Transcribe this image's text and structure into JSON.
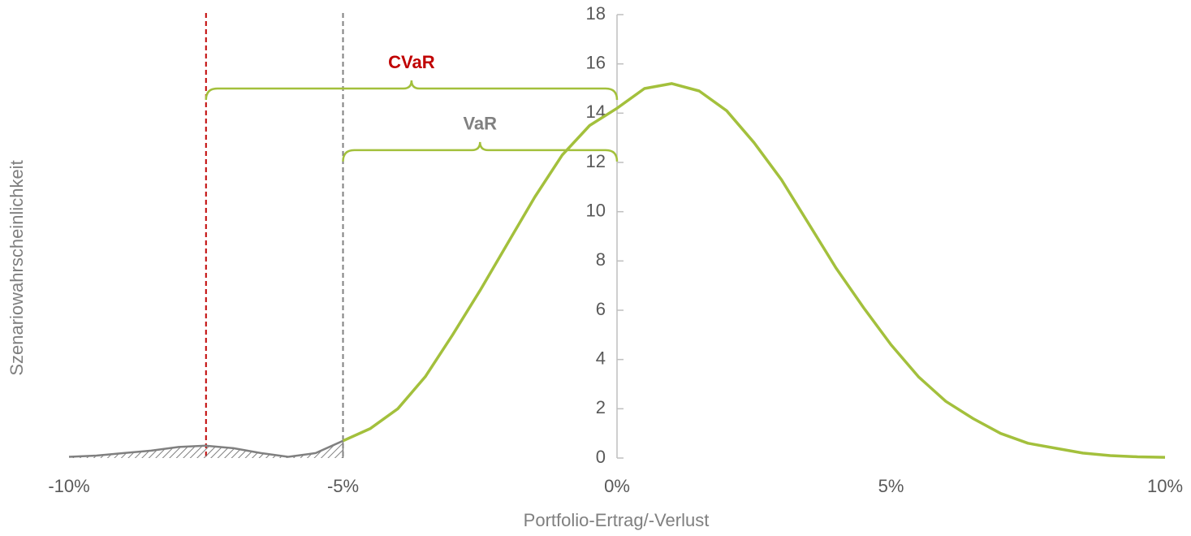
{
  "chart_data": {
    "type": "line",
    "xlabel": "Portfolio-Ertrag/-Verlust",
    "ylabel": "Szenariowahrscheinlichkeit",
    "xlim": [
      -10,
      10
    ],
    "xticks": [
      {
        "value": -10,
        "label": "-10%"
      },
      {
        "value": -5,
        "label": "-5%"
      },
      {
        "value": 0,
        "label": "0%"
      },
      {
        "value": 5,
        "label": "5%"
      },
      {
        "value": 10,
        "label": "10%"
      }
    ],
    "ylim": [
      0,
      18
    ],
    "yticks": [
      0,
      2,
      4,
      6,
      8,
      10,
      12,
      14,
      16,
      18
    ],
    "series": [
      {
        "color": "#808080",
        "hatched": true,
        "x": [
          -10,
          -9.5,
          -9,
          -8.5,
          -8,
          -7.5,
          -7,
          -6.5,
          -6,
          -5.5,
          -5
        ],
        "values": [
          0.05,
          0.1,
          0.2,
          0.3,
          0.45,
          0.5,
          0.4,
          0.2,
          0.05,
          0.2,
          0.7
        ]
      },
      {
        "color": "#a3c03c",
        "x": [
          -5,
          -4.5,
          -4,
          -3.5,
          -3,
          -2.5,
          -2,
          -1.5,
          -1,
          -0.5,
          0,
          0.5,
          1,
          1.5,
          2,
          2.5,
          3,
          3.5,
          4,
          4.5,
          5,
          5.5,
          6,
          6.5,
          7,
          7.5,
          8,
          8.5,
          9,
          9.5,
          10
        ],
        "values": [
          0.7,
          1.2,
          2.0,
          3.3,
          5.0,
          6.8,
          8.7,
          10.6,
          12.3,
          13.5,
          14.2,
          15.0,
          15.2,
          14.9,
          14.1,
          12.8,
          11.3,
          9.5,
          7.7,
          6.1,
          4.6,
          3.3,
          2.3,
          1.6,
          1.0,
          0.6,
          0.4,
          0.2,
          0.1,
          0.05,
          0.03
        ]
      }
    ],
    "vlines": [
      {
        "x": -7.5,
        "color": "#c00000"
      },
      {
        "x": -5,
        "color": "#808080"
      }
    ],
    "annotations": [
      {
        "label": "CVaR",
        "color": "#c00000",
        "x": [
          -7.5,
          0
        ],
        "y": 15
      },
      {
        "label": "VaR",
        "color": "#808080",
        "x": [
          -5,
          0
        ],
        "y": 12.5
      }
    ],
    "brace_color": "#a3c03c"
  }
}
